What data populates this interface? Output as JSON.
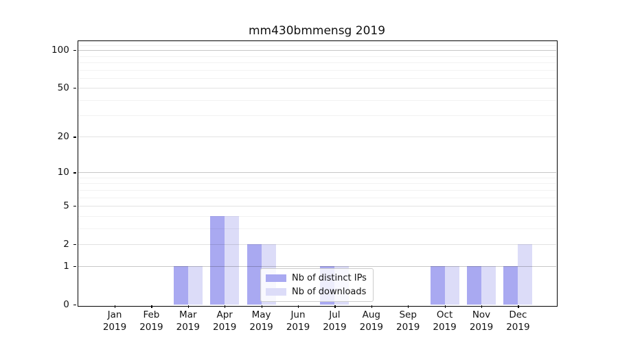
{
  "chart_data": {
    "type": "bar",
    "title": "mm430bmmensg 2019",
    "categories": [
      "Jan",
      "Feb",
      "Mar",
      "Apr",
      "May",
      "Jun",
      "Jul",
      "Aug",
      "Sep",
      "Oct",
      "Nov",
      "Dec"
    ],
    "category_year": "2019",
    "series": [
      {
        "name": "Nb of distinct IPs",
        "color": "#a9a9f1",
        "values": [
          0,
          0,
          1,
          4,
          2,
          0,
          1,
          0,
          0,
          1,
          1,
          1
        ]
      },
      {
        "name": "Nb of downloads",
        "color": "#dcdcf8",
        "values": [
          0,
          0,
          1,
          4,
          2,
          0,
          1,
          0,
          0,
          1,
          1,
          2
        ]
      }
    ],
    "xlabel": "",
    "ylabel": "",
    "y_axis": {
      "scale": "log1p",
      "ticks": [
        0,
        1,
        2,
        5,
        10,
        20,
        50,
        100
      ],
      "decade_ticks": [
        1,
        10,
        100
      ],
      "minor_ticks": [
        3,
        4,
        6,
        7,
        8,
        9,
        30,
        40,
        60,
        70,
        80,
        90,
        110
      ],
      "ylim": [
        0,
        118
      ]
    },
    "grid": true,
    "legend_position": "lower center-right inside plot"
  }
}
